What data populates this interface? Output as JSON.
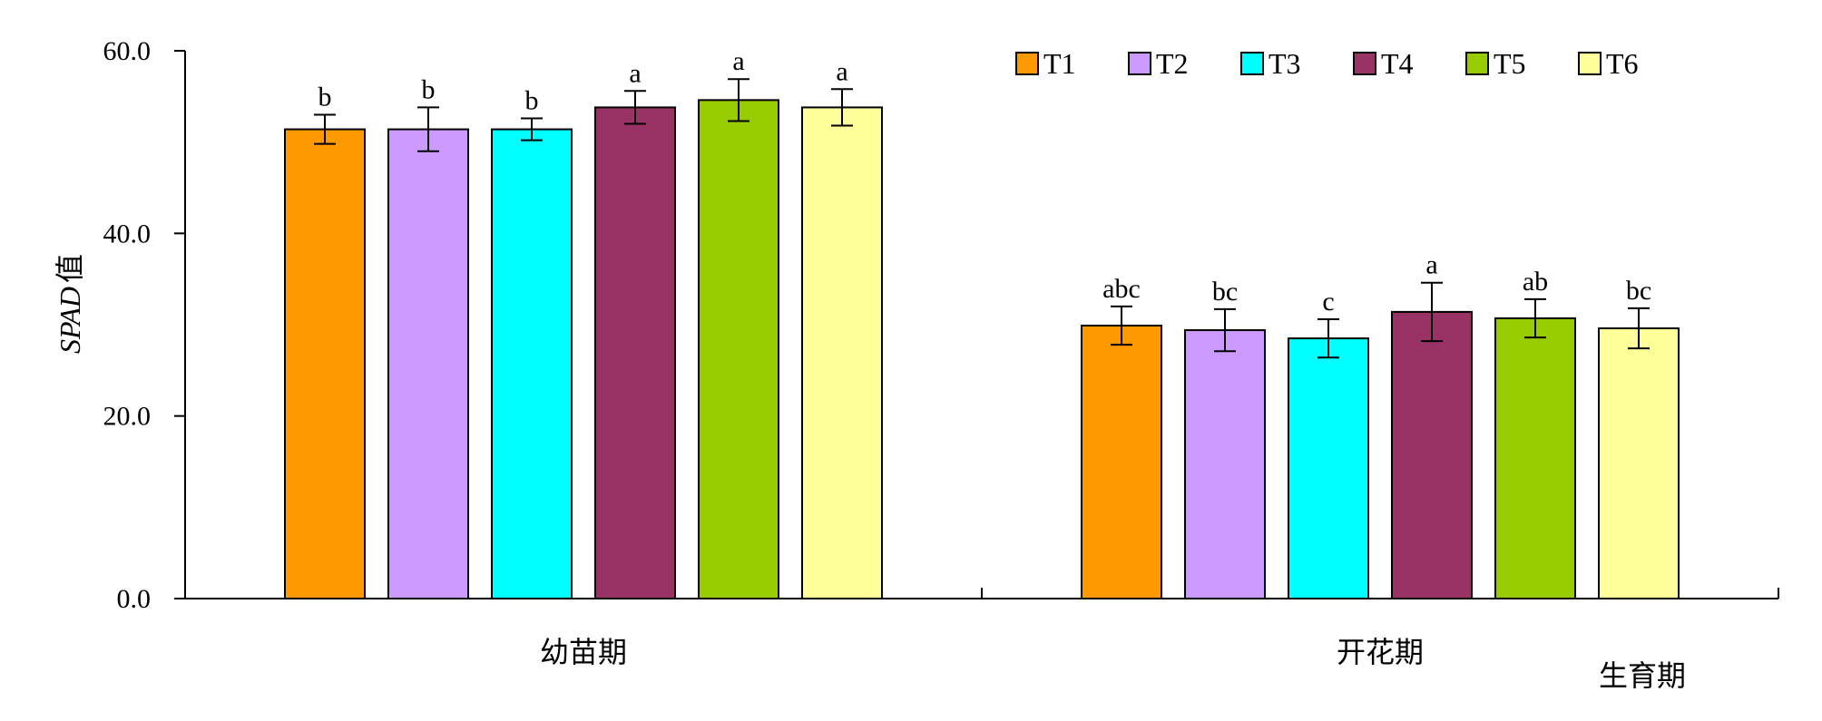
{
  "chart_data": {
    "type": "bar",
    "title": "",
    "xlabel": "生育期",
    "ylabel_italic": "SPAD",
    "ylabel_suffix": "值",
    "ylim": [
      0,
      60
    ],
    "yticks": [
      "0.0",
      "20.0",
      "40.0",
      "60.0"
    ],
    "ytick_values": [
      0,
      20,
      40,
      60
    ],
    "categories": [
      "幼苗期",
      "开花期"
    ],
    "legend_position": "top-right",
    "series": [
      {
        "name": "T1",
        "color": "#FF9900",
        "values": [
          51.4,
          29.9
        ],
        "errors": [
          1.6,
          2.1
        ],
        "letters": [
          "b",
          "abc"
        ]
      },
      {
        "name": "T2",
        "color": "#CC99FF",
        "values": [
          51.4,
          29.4
        ],
        "errors": [
          2.4,
          2.3
        ],
        "letters": [
          "b",
          "bc"
        ]
      },
      {
        "name": "T3",
        "color": "#00FFFF",
        "values": [
          51.4,
          28.5
        ],
        "errors": [
          1.2,
          2.1
        ],
        "letters": [
          "b",
          "c"
        ]
      },
      {
        "name": "T4",
        "color": "#993366",
        "values": [
          53.8,
          31.4
        ],
        "errors": [
          1.8,
          3.2
        ],
        "letters": [
          "a",
          "a"
        ]
      },
      {
        "name": "T5",
        "color": "#99CC00",
        "values": [
          54.6,
          30.7
        ],
        "errors": [
          2.3,
          2.1
        ],
        "letters": [
          "a",
          "ab"
        ]
      },
      {
        "name": "T6",
        "color": "#FFFF99",
        "values": [
          53.8,
          29.6
        ],
        "errors": [
          2.0,
          2.2
        ],
        "letters": [
          "a",
          "bc"
        ]
      }
    ]
  }
}
